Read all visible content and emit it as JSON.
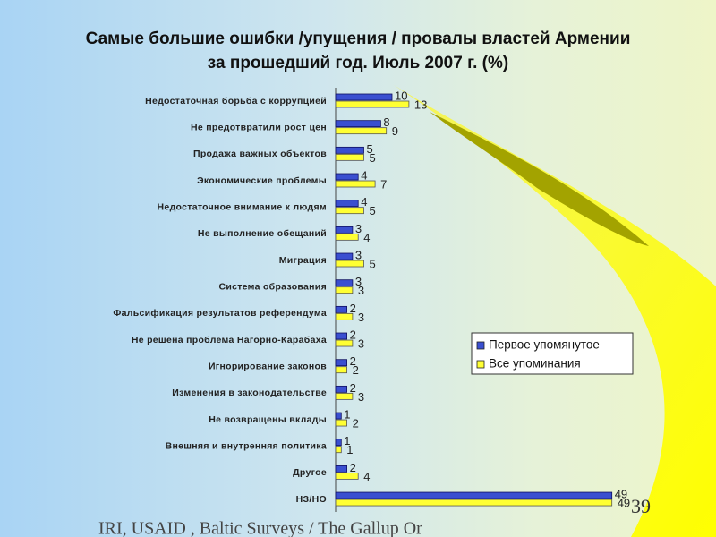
{
  "chart_data": {
    "type": "bar",
    "orientation": "horizontal",
    "title": "Самые большие ошибки /упущения / провалы властей Армении за прошедший год. Июль 2007 г. (%)",
    "categories": [
      "Недостаточная борьба с коррупцией",
      "Не предотвратили рост цен",
      "Продажа важных объектов",
      "Экономические проблемы",
      "Недостаточное внимание к людям",
      "Не выполнение обещаний",
      "Миграция",
      "Система образования",
      "Фальсификация результатов референдума",
      "Не решена проблема Нагорно-Карабаха",
      "Игнорирование законов",
      "Изменения в законодательстве",
      "Не возвращены вклады",
      "Внешняя и внутренняя политика",
      "Другое",
      "НЗ/НО"
    ],
    "series": [
      {
        "name": "Первое упомянутое",
        "color": "#3a4fd0",
        "values": [
          10,
          8,
          5,
          4,
          4,
          3,
          3,
          3,
          2,
          2,
          2,
          2,
          1,
          1,
          2,
          49
        ]
      },
      {
        "name": "Все упоминания",
        "color": "#ffff33",
        "values": [
          13,
          9,
          5,
          7,
          5,
          4,
          5,
          3,
          3,
          3,
          2,
          3,
          2,
          1,
          4,
          49
        ]
      }
    ],
    "xlim": [
      0,
      50
    ],
    "legend": "right"
  },
  "footer": "IRI, USAID , Baltic Surveys / The Gallup Or",
  "page_number": "39"
}
